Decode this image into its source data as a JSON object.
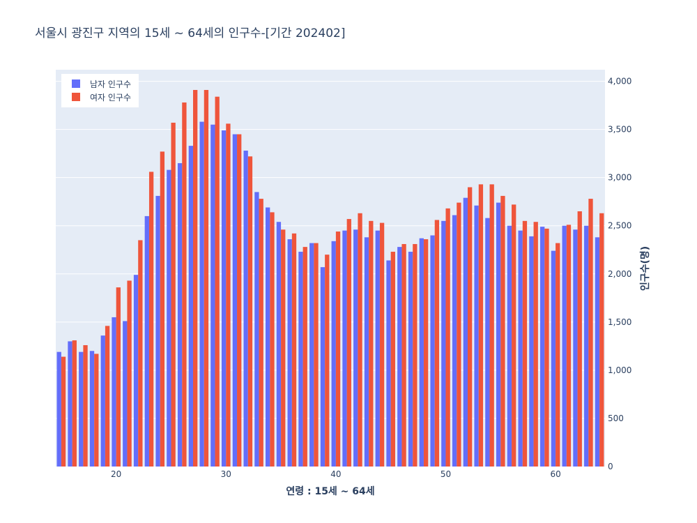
{
  "chart_data": {
    "type": "bar",
    "title": "서울시 광진구 지역의 15세 ~ 64세의 인구수-[기간 202402]",
    "xlabel": "연령 : 15세 ~ 64세",
    "ylabel": "인구수(명)",
    "x": [
      15,
      16,
      17,
      18,
      19,
      20,
      21,
      22,
      23,
      24,
      25,
      26,
      27,
      28,
      29,
      30,
      31,
      32,
      33,
      34,
      35,
      36,
      37,
      38,
      39,
      40,
      41,
      42,
      43,
      44,
      45,
      46,
      47,
      48,
      49,
      50,
      51,
      52,
      53,
      54,
      55,
      56,
      57,
      58,
      59,
      60,
      61,
      62,
      63,
      64
    ],
    "xlim": [
      14.5,
      64.5
    ],
    "xticks": [
      20,
      30,
      40,
      50,
      60
    ],
    "ylim": [
      0,
      4120
    ],
    "yticks": [
      0,
      500,
      1000,
      1500,
      2000,
      2500,
      3000,
      3500,
      4000
    ],
    "ytick_labels": [
      "0",
      "500",
      "1,000",
      "1,500",
      "2,000",
      "2,500",
      "3,000",
      "3,500",
      "4,000"
    ],
    "series": [
      {
        "name": "남자 인구수",
        "color": "#636efa",
        "values": [
          1190,
          1300,
          1190,
          1200,
          1360,
          1550,
          1510,
          1990,
          2600,
          2810,
          3080,
          3150,
          3330,
          3580,
          3550,
          3490,
          3450,
          3280,
          2850,
          2690,
          2540,
          2360,
          2230,
          2320,
          2070,
          2340,
          2450,
          2460,
          2380,
          2450,
          2140,
          2280,
          2230,
          2370,
          2400,
          2550,
          2610,
          2790,
          2710,
          2580,
          2740,
          2500,
          2450,
          2390,
          2490,
          2240,
          2500,
          2460,
          2500,
          2380
        ]
      },
      {
        "name": "여자 인구수",
        "color": "#ef553b",
        "values": [
          1140,
          1310,
          1260,
          1170,
          1460,
          1860,
          1930,
          2350,
          3060,
          3270,
          3570,
          3780,
          3910,
          3910,
          3840,
          3560,
          3450,
          3220,
          2780,
          2640,
          2460,
          2420,
          2280,
          2320,
          2200,
          2440,
          2570,
          2630,
          2550,
          2530,
          2230,
          2310,
          2310,
          2360,
          2560,
          2680,
          2740,
          2900,
          2930,
          2930,
          2810,
          2720,
          2550,
          2540,
          2470,
          2320,
          2510,
          2650,
          2780,
          2630
        ]
      }
    ],
    "legend": "top-left"
  }
}
